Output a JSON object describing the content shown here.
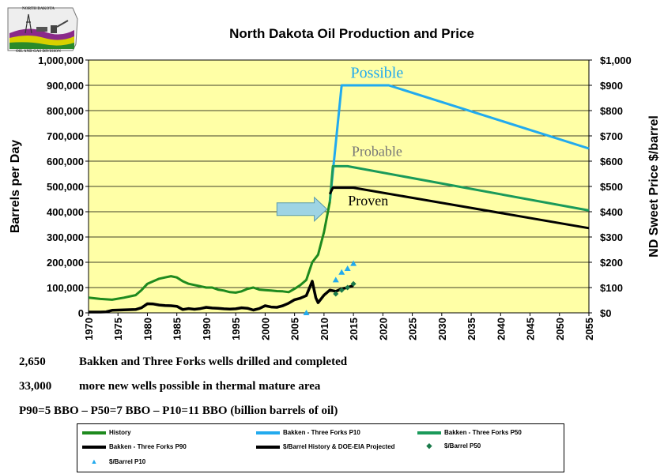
{
  "logo": {
    "top_text": "NORTH DAKOTA",
    "bottom_text": "OIL AND GAS DIVISION"
  },
  "chart_data": {
    "type": "line",
    "title": "North Dakota Oil Production and Price",
    "ylabel": "Barrels per Day",
    "y2label": "ND Sweet Price $/barrel",
    "xlabel": "",
    "xlim": [
      1970,
      2055
    ],
    "ylim": [
      0,
      1000000
    ],
    "y2lim": [
      0,
      1000
    ],
    "x_ticks": [
      1970,
      1975,
      1980,
      1985,
      1990,
      1995,
      2000,
      2005,
      2010,
      2015,
      2020,
      2025,
      2030,
      2035,
      2040,
      2045,
      2050,
      2055
    ],
    "y_ticks": [
      0,
      100000,
      200000,
      300000,
      400000,
      500000,
      600000,
      700000,
      800000,
      900000,
      1000000
    ],
    "y_tick_labels": [
      "0",
      "100,000",
      "200,000",
      "300,000",
      "400,000",
      "500,000",
      "600,000",
      "700,000",
      "800,000",
      "900,000",
      "1,000,000"
    ],
    "y2_ticks": [
      0,
      100,
      200,
      300,
      400,
      500,
      600,
      700,
      800,
      900,
      1000
    ],
    "y2_tick_labels": [
      "$0",
      "$100",
      "$200",
      "$300",
      "$400",
      "$500",
      "$600",
      "$700",
      "$800",
      "$900",
      "$1,000"
    ],
    "grid": "horizontal",
    "legend_position": "bottom",
    "colors": {
      "plot_bg": "#ffffa6",
      "history": "#1e8a1e",
      "p10": "#22aaee",
      "p50": "#1a9a5a",
      "p90": "#000000",
      "price": "#000000",
      "arrow": "#9ed4e4"
    },
    "series": [
      {
        "name": "History",
        "axis": "left",
        "x": [
          1970,
          1972,
          1974,
          1976,
          1978,
          1979,
          1980,
          1981,
          1982,
          1983,
          1984,
          1985,
          1986,
          1987,
          1988,
          1989,
          1990,
          1991,
          1992,
          1993,
          1994,
          1995,
          1996,
          1997,
          1998,
          1999,
          2000,
          2001,
          2002,
          2003,
          2004,
          2005,
          2006,
          2007,
          2008,
          2009,
          2010,
          2011
        ],
        "y": [
          60000,
          55000,
          52000,
          60000,
          70000,
          90000,
          115000,
          125000,
          135000,
          140000,
          145000,
          140000,
          125000,
          115000,
          110000,
          105000,
          100000,
          100000,
          92000,
          88000,
          82000,
          80000,
          85000,
          95000,
          100000,
          92000,
          90000,
          88000,
          86000,
          85000,
          82000,
          95000,
          110000,
          130000,
          200000,
          230000,
          320000,
          440000
        ]
      },
      {
        "name": "Bakken - Three Forks P10",
        "axis": "left",
        "x": [
          2011,
          2013,
          2021,
          2055
        ],
        "y": [
          440000,
          900000,
          900000,
          650000
        ]
      },
      {
        "name": "Bakken - Three Forks P50",
        "axis": "left",
        "x": [
          2011,
          2011.5,
          2014,
          2055
        ],
        "y": [
          440000,
          580000,
          580000,
          405000
        ]
      },
      {
        "name": "Bakken - Three Forks P90",
        "axis": "left",
        "x": [
          2011,
          2011.5,
          2015,
          2055
        ],
        "y": [
          470000,
          495000,
          495000,
          335000
        ]
      },
      {
        "name": "$/Barrel History & DOE-EIA Projected",
        "axis": "right",
        "x": [
          1970,
          1972,
          1973,
          1974,
          1976,
          1978,
          1979,
          1980,
          1981,
          1982,
          1983,
          1984,
          1985,
          1986,
          1987,
          1988,
          1989,
          1990,
          1991,
          1992,
          1993,
          1994,
          1995,
          1996,
          1997,
          1998,
          1999,
          2000,
          2001,
          2002,
          2003,
          2004,
          2005,
          2006,
          2007,
          2008,
          2008.6,
          2009,
          2010,
          2011,
          2012,
          2013,
          2014,
          2015
        ],
        "y": [
          3,
          3,
          4,
          10,
          12,
          13,
          20,
          36,
          35,
          31,
          29,
          28,
          26,
          13,
          17,
          14,
          17,
          22,
          19,
          18,
          16,
          15,
          16,
          20,
          18,
          11,
          17,
          28,
          23,
          22,
          28,
          38,
          52,
          58,
          68,
          125,
          60,
          40,
          70,
          90,
          85,
          95,
          100,
          108
        ]
      },
      {
        "name": "$/Barrel P50",
        "axis": "right",
        "marker": "diamond",
        "x": [
          2012,
          2013,
          2014,
          2015
        ],
        "y": [
          75,
          90,
          100,
          115
        ]
      },
      {
        "name": "$/Barrel P10",
        "axis": "right",
        "marker": "triangle",
        "x": [
          2007,
          2012,
          2013,
          2014,
          2015
        ],
        "y": [
          0,
          130,
          160,
          175,
          195
        ]
      }
    ],
    "annotations": [
      {
        "text": "Possible",
        "x": 2019,
        "y": 930000,
        "color": "#22aaee",
        "size": 20
      },
      {
        "text": "Probable",
        "x": 2019,
        "y": 620000,
        "color": "#777777",
        "size": 18
      },
      {
        "text": "Proven",
        "x": 2017.5,
        "y": 425000,
        "color": "#000000",
        "size": 18
      }
    ],
    "arrow": {
      "x_start": 2002,
      "x_end": 2010.5,
      "y": 410000
    }
  },
  "notes": [
    {
      "num": "2,650",
      "text": "Bakken and Three Forks wells drilled and completed"
    },
    {
      "num": "33,000",
      "text": "more new wells possible in thermal mature area"
    },
    {
      "num": "",
      "text": "P90=5 BBO – P50=7 BBO – P10=11 BBO (billion barrels of oil)"
    }
  ],
  "legend": [
    {
      "label": "History",
      "color": "#1e8a1e",
      "kind": "line"
    },
    {
      "label": "Bakken - Three Forks P10",
      "color": "#22aaee",
      "kind": "line"
    },
    {
      "label": "Bakken - Three Forks P50",
      "color": "#1a9a5a",
      "kind": "line"
    },
    {
      "label": "Bakken - Three Forks P90",
      "color": "#000000",
      "kind": "line"
    },
    {
      "label": "$/Barrel History & DOE-EIA Projected",
      "color": "#000000",
      "kind": "line-dot"
    },
    {
      "label": "$/Barrel P50",
      "color": "#1a7a4a",
      "kind": "diamond"
    },
    {
      "label": "$/Barrel P10",
      "color": "#22aaee",
      "kind": "triangle"
    }
  ]
}
